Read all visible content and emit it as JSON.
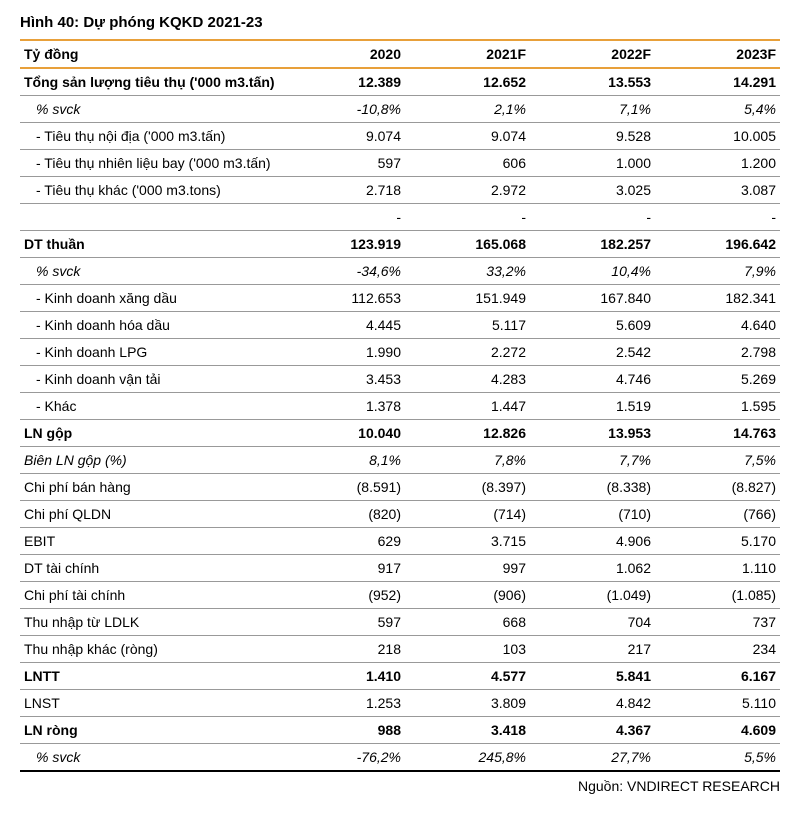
{
  "figure_title": "Hình 40:  Dự phóng KQKD 2021-23",
  "unit_label": "Tỷ đồng",
  "columns": [
    "2020",
    "2021F",
    "2022F",
    "2023F"
  ],
  "rows": [
    {
      "label": "Tổng sản lượng tiêu thụ ('000 m3.tấn)",
      "vals": [
        "12.389",
        "12.652",
        "13.553",
        "14.291"
      ],
      "bold": true
    },
    {
      "label": "% svck",
      "vals": [
        "-10,8%",
        "2,1%",
        "7,1%",
        "5,4%"
      ],
      "italic": true,
      "indent": true
    },
    {
      "label": "- Tiêu thụ nội địa ('000 m3.tấn)",
      "vals": [
        "9.074",
        "9.074",
        "9.528",
        "10.005"
      ],
      "indent": true
    },
    {
      "label": "- Tiêu thụ nhiên liệu bay ('000 m3.tấn)",
      "vals": [
        "597",
        "606",
        "1.000",
        "1.200"
      ],
      "indent": true
    },
    {
      "label": "- Tiêu thụ khác ('000 m3.tons)",
      "vals": [
        "2.718",
        "2.972",
        "3.025",
        "3.087"
      ],
      "indent": true
    },
    {
      "label": "",
      "vals": [
        "-",
        "-",
        "-",
        "-"
      ]
    },
    {
      "label": "DT thuần",
      "vals": [
        "123.919",
        "165.068",
        "182.257",
        "196.642"
      ],
      "bold": true
    },
    {
      "label": "% svck",
      "vals": [
        "-34,6%",
        "33,2%",
        "10,4%",
        "7,9%"
      ],
      "italic": true,
      "indent": true
    },
    {
      "label": "- Kinh doanh xăng dầu",
      "vals": [
        "112.653",
        "151.949",
        "167.840",
        "182.341"
      ],
      "indent": true
    },
    {
      "label": "- Kinh doanh hóa dầu",
      "vals": [
        "4.445",
        "5.117",
        "5.609",
        "4.640"
      ],
      "indent": true
    },
    {
      "label": "- Kinh doanh LPG",
      "vals": [
        "1.990",
        "2.272",
        "2.542",
        "2.798"
      ],
      "indent": true
    },
    {
      "label": "- Kinh doanh vận tải",
      "vals": [
        "3.453",
        "4.283",
        "4.746",
        "5.269"
      ],
      "indent": true
    },
    {
      "label": "- Khác",
      "vals": [
        "1.378",
        "1.447",
        "1.519",
        "1.595"
      ],
      "indent": true
    },
    {
      "label": "LN gộp",
      "vals": [
        "10.040",
        "12.826",
        "13.953",
        "14.763"
      ],
      "bold": true
    },
    {
      "label": "Biên LN gộp (%)",
      "vals": [
        "8,1%",
        "7,8%",
        "7,7%",
        "7,5%"
      ],
      "italic": true
    },
    {
      "label": "Chi phí bán hàng",
      "vals": [
        "(8.591)",
        "(8.397)",
        "(8.338)",
        "(8.827)"
      ]
    },
    {
      "label": "Chi phí QLDN",
      "vals": [
        "(820)",
        "(714)",
        "(710)",
        "(766)"
      ]
    },
    {
      "label": "EBIT",
      "vals": [
        "629",
        "3.715",
        "4.906",
        "5.170"
      ]
    },
    {
      "label": "DT tài chính",
      "vals": [
        "917",
        "997",
        "1.062",
        "1.110"
      ]
    },
    {
      "label": "Chi phí tài chính",
      "vals": [
        "(952)",
        "(906)",
        "(1.049)",
        "(1.085)"
      ]
    },
    {
      "label": "Thu nhập từ LDLK",
      "vals": [
        "597",
        "668",
        "704",
        "737"
      ]
    },
    {
      "label": "Thu nhập khác (ròng)",
      "vals": [
        "218",
        "103",
        "217",
        "234"
      ]
    },
    {
      "label": "LNTT",
      "vals": [
        "1.410",
        "4.577",
        "5.841",
        "6.167"
      ],
      "bold": true
    },
    {
      "label": "LNST",
      "vals": [
        "1.253",
        "3.809",
        "4.842",
        "5.110"
      ]
    },
    {
      "label": "LN ròng",
      "vals": [
        "988",
        "3.418",
        "4.367",
        "4.609"
      ],
      "bold": true
    },
    {
      "label": "% svck",
      "vals": [
        "-76,2%",
        "245,8%",
        "27,7%",
        "5,5%"
      ],
      "italic": true,
      "indent": true,
      "last": true
    }
  ],
  "source": "Nguồn: VNDIRECT RESEARCH",
  "colors": {
    "accent": "#e8a03a",
    "row_border": "#999999",
    "text": "#000000",
    "background": "#ffffff"
  }
}
